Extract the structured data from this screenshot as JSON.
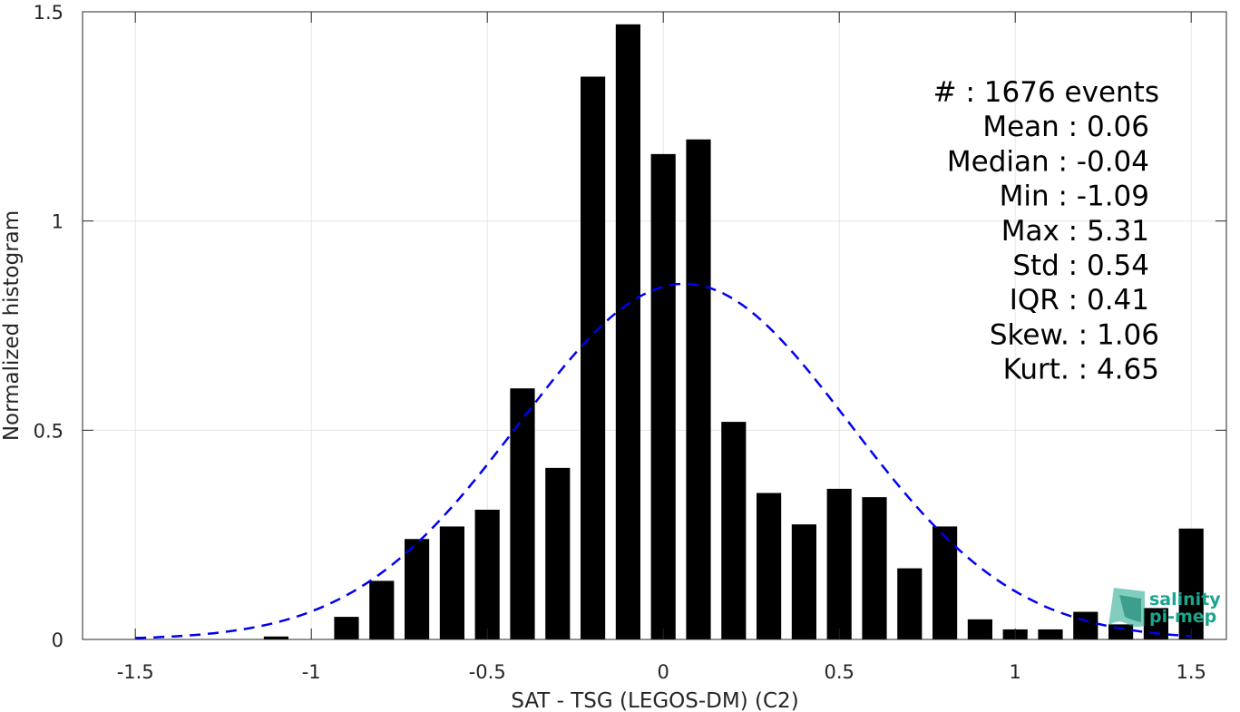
{
  "chart_data": {
    "type": "bar",
    "xlabel": "SAT - TSG (LEGOS-DM) (C2)",
    "ylabel": "Normalized histogram",
    "xlim": [
      -1.65,
      1.6
    ],
    "ylim": [
      0,
      1.5
    ],
    "grid": true,
    "x_ticks": [
      -1.5,
      -1,
      -0.5,
      0,
      0.5,
      1,
      1.5
    ],
    "x_tick_labels": [
      "-1.5",
      "-1",
      "-0.5",
      "0",
      "0.5",
      "1",
      "1.5"
    ],
    "y_ticks": [
      0,
      0.5,
      1,
      1.5
    ],
    "y_tick_labels": [
      "0",
      "0.5",
      "1",
      "1.5"
    ],
    "bar_width": 0.07,
    "bar_color": "#000000",
    "x": [
      -1.1,
      -1.0,
      -0.9,
      -0.8,
      -0.7,
      -0.6,
      -0.5,
      -0.4,
      -0.3,
      -0.2,
      -0.1,
      0.0,
      0.1,
      0.2,
      0.3,
      0.4,
      0.5,
      0.6,
      0.7,
      0.8,
      0.9,
      1.0,
      1.1,
      1.2,
      1.3,
      1.4,
      1.5
    ],
    "values": [
      0.007,
      0,
      0.054,
      0.14,
      0.24,
      0.27,
      0.31,
      0.6,
      0.41,
      1.345,
      1.47,
      1.16,
      1.195,
      0.52,
      0.35,
      0.275,
      0.36,
      0.34,
      0.17,
      0.27,
      0.048,
      0.024,
      0.024,
      0.066,
      0.036,
      0.075,
      0.265
    ],
    "fit_curve": {
      "type": "gaussian",
      "mean": 0.06,
      "std": 0.47,
      "peak": 0.85,
      "x_range": [
        -1.5,
        1.5
      ],
      "color": "#0000ee",
      "style": "dashed"
    }
  },
  "stats": [
    {
      "label": "#  : 1676 events"
    },
    {
      "label": "Mean : 0.06"
    },
    {
      "label": "Median : -0.04"
    },
    {
      "label": "Min : -1.09"
    },
    {
      "label": "Max : 5.31"
    },
    {
      "label": "Std : 0.54"
    },
    {
      "label": "IQR : 0.41"
    },
    {
      "label": "Skew. : 1.06"
    },
    {
      "label": "Kurt. : 4.65"
    }
  ],
  "logo": {
    "line1": "salinity",
    "line2": "pi-mep",
    "color": "#1aa58c"
  }
}
